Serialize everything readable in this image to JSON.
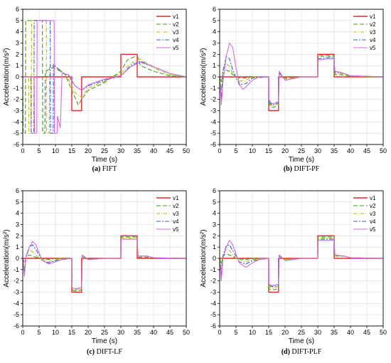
{
  "colors": {
    "v1": "#e8262b",
    "v2": "#3f9b1f",
    "v3": "#b8b800",
    "v4": "#2f5fd0",
    "v5": "#d46bd8",
    "grid": "#d9d9d9",
    "axis": "#000000"
  },
  "chart_data": [
    {
      "type": "line",
      "caption_tag": "(a)",
      "caption_text": "FIFT",
      "xlabel": "Time (s)",
      "ylabel": "Acceleration(m/s²)",
      "xlim": [
        0,
        50
      ],
      "ylim": [
        -6,
        6
      ],
      "xticks": [
        0,
        5,
        10,
        15,
        20,
        25,
        30,
        35,
        40,
        45,
        50
      ],
      "yticks": [
        6,
        5,
        4,
        3,
        2,
        1,
        0,
        -1,
        -2,
        -3,
        -4,
        -5,
        -6
      ],
      "grid": true,
      "legend_position": "top-right",
      "series": [
        {
          "name": "v1",
          "x": [
            0,
            15,
            15,
            18,
            18,
            30,
            30,
            35,
            35,
            50
          ],
          "y": [
            0,
            0,
            -3,
            -3,
            0,
            0,
            2,
            2,
            0,
            0
          ]
        },
        {
          "name": "v2",
          "x": [
            0,
            0.1,
            0.8,
            0.9,
            6.0,
            6.1,
            6.8,
            6.9,
            9,
            11,
            13,
            15,
            17,
            18,
            20,
            25,
            30,
            32,
            35,
            36,
            40,
            45,
            50
          ],
          "y": [
            0,
            -5,
            -5,
            5,
            5,
            -5,
            -5,
            0.5,
            0.8,
            0.6,
            0.2,
            -1.2,
            -2.5,
            -2.0,
            -1.2,
            -0.5,
            0.5,
            1.5,
            1.9,
            1.0,
            0.5,
            0.1,
            0
          ]
        },
        {
          "name": "v3",
          "x": [
            0,
            1.8,
            1.9,
            2.6,
            2.7,
            7.2,
            7.3,
            8.1,
            8.2,
            10,
            12,
            14,
            16,
            18,
            20,
            25,
            30,
            33,
            36,
            40,
            45,
            50
          ],
          "y": [
            0,
            0,
            -5,
            -5,
            5,
            5,
            -5,
            -5,
            1.0,
            0.9,
            0.5,
            -0.2,
            -1.4,
            -1.8,
            -1.0,
            -0.4,
            0.3,
            1.2,
            1.6,
            0.8,
            0.2,
            0
          ]
        },
        {
          "name": "v4",
          "x": [
            0,
            2.5,
            2.6,
            3.4,
            3.5,
            8.4,
            8.5,
            9.3,
            9.4,
            10.5,
            12,
            14,
            16,
            18,
            20,
            25,
            30,
            33,
            36,
            40,
            45,
            50
          ],
          "y": [
            0,
            0,
            -5,
            -5,
            5,
            5,
            -5,
            -5,
            1.1,
            0.8,
            0.4,
            0.1,
            -0.8,
            -1.2,
            -0.8,
            -0.3,
            0.1,
            1.0,
            1.4,
            0.9,
            0.3,
            0
          ]
        },
        {
          "name": "v5",
          "x": [
            0,
            3.5,
            3.6,
            4.3,
            4.4,
            9.6,
            9.7,
            10.5,
            10.6,
            11.5,
            12,
            14,
            16,
            18,
            20,
            25,
            30,
            33,
            36,
            40,
            45,
            50
          ],
          "y": [
            0,
            0,
            -5,
            -5,
            5,
            5,
            -5,
            -5,
            -3.5,
            -4.5,
            0.3,
            0.2,
            -0.8,
            -1.2,
            -0.7,
            -0.2,
            0.1,
            0.9,
            1.3,
            0.9,
            0.3,
            0
          ]
        }
      ]
    },
    {
      "type": "line",
      "caption_tag": "(b)",
      "caption_text": "DIFT-PF",
      "xlabel": "Time (s)",
      "ylabel": "Acceleration(m/s²)",
      "xlim": [
        0,
        50
      ],
      "ylim": [
        -6,
        6
      ],
      "xticks": [
        0,
        5,
        10,
        15,
        20,
        25,
        30,
        35,
        40,
        45,
        50
      ],
      "yticks": [
        6,
        5,
        4,
        3,
        2,
        1,
        0,
        -1,
        -2,
        -3,
        -4,
        -5,
        -6
      ],
      "grid": true,
      "legend_position": "top-right",
      "series": [
        {
          "name": "v1",
          "x": [
            0,
            15,
            15,
            18,
            18,
            30,
            30,
            35,
            35,
            50
          ],
          "y": [
            0,
            0,
            -3,
            -3,
            0,
            0,
            2,
            2,
            0,
            0
          ]
        },
        {
          "name": "v2",
          "x": [
            0,
            0.5,
            1,
            2,
            3,
            4,
            6,
            8,
            10,
            15,
            15.1,
            16,
            18,
            18.2,
            20,
            25,
            30,
            30.1,
            33,
            35,
            35.2,
            37,
            40,
            50
          ],
          "y": [
            0,
            -0.5,
            0.3,
            0.6,
            0.5,
            0.2,
            -0.1,
            -0.1,
            0,
            0,
            -2.4,
            -2.7,
            -2.6,
            0.3,
            -0.1,
            0,
            0,
            1.9,
            1.9,
            1.9,
            0.2,
            0.2,
            0.05,
            0
          ]
        },
        {
          "name": "v3",
          "x": [
            0,
            0.5,
            1,
            2,
            3,
            4,
            6,
            8,
            10,
            15,
            15.1,
            16,
            18,
            18.2,
            20,
            25,
            30,
            30.1,
            33,
            35,
            35.2,
            37,
            40,
            50
          ],
          "y": [
            0,
            -1.2,
            0.6,
            1.2,
            0.9,
            0.3,
            -0.4,
            -0.3,
            0,
            0,
            -2.3,
            -2.6,
            -2.4,
            0.4,
            -0.2,
            0,
            0,
            1.8,
            1.8,
            1.8,
            0.3,
            0.3,
            0.05,
            0
          ]
        },
        {
          "name": "v4",
          "x": [
            0,
            0.5,
            1,
            2,
            3,
            4,
            6,
            8,
            10,
            15,
            15.1,
            16,
            18,
            18.2,
            20,
            25,
            30,
            30.1,
            33,
            35,
            35.2,
            37,
            40,
            50
          ],
          "y": [
            0,
            -2.0,
            0.5,
            1.8,
            1.6,
            0.6,
            -0.7,
            -0.6,
            -0.1,
            0,
            -2.2,
            -2.5,
            -2.3,
            0.4,
            -0.3,
            0,
            0,
            1.6,
            1.7,
            1.7,
            0.4,
            0.4,
            0.1,
            0
          ]
        },
        {
          "name": "v5",
          "x": [
            0,
            0.5,
            1,
            2,
            3,
            4,
            5,
            6,
            7,
            8,
            10,
            12,
            15,
            15.1,
            16,
            18,
            18.2,
            20,
            25,
            30,
            30.1,
            33,
            35,
            35.2,
            37,
            40,
            50
          ],
          "y": [
            0,
            -2.5,
            -0.5,
            1.8,
            3.0,
            2.6,
            0.8,
            -0.6,
            -1.1,
            -0.9,
            -0.3,
            0,
            0,
            -2.0,
            -2.4,
            -2.2,
            0.5,
            -0.3,
            0,
            0,
            1.5,
            1.6,
            1.6,
            0.5,
            0.4,
            0.1,
            0
          ]
        }
      ]
    },
    {
      "type": "line",
      "caption_tag": "(c)",
      "caption_text": "DIFT-LF",
      "xlabel": "Time (s)",
      "ylabel": "Acceleration(m/s²)",
      "xlim": [
        0,
        50
      ],
      "ylim": [
        -6,
        6
      ],
      "xticks": [
        0,
        5,
        10,
        15,
        20,
        25,
        30,
        35,
        40,
        45,
        50
      ],
      "yticks": [
        6,
        5,
        4,
        3,
        2,
        1,
        0,
        -1,
        -2,
        -3,
        -4,
        -5,
        -6
      ],
      "grid": true,
      "legend_position": "top-right",
      "series": [
        {
          "name": "v1",
          "x": [
            0,
            15,
            15,
            18,
            18,
            30,
            30,
            35,
            35,
            50
          ],
          "y": [
            0,
            0,
            -3,
            -3,
            0,
            0,
            2,
            2,
            0,
            0
          ]
        },
        {
          "name": "v2",
          "x": [
            0,
            0.5,
            1,
            2,
            3,
            5,
            8,
            10,
            15,
            15.1,
            16,
            18,
            18.2,
            20,
            25,
            30,
            30.1,
            33,
            35,
            35.2,
            38,
            40,
            50
          ],
          "y": [
            0,
            -0.4,
            0.1,
            0.3,
            0.2,
            0,
            -0.1,
            0,
            0,
            -2.8,
            -2.9,
            -2.8,
            0.2,
            -0.1,
            0,
            0,
            1.9,
            1.9,
            1.9,
            0.1,
            0.1,
            0.05,
            0
          ]
        },
        {
          "name": "v3",
          "x": [
            0,
            0.5,
            1,
            2,
            3,
            5,
            8,
            10,
            15,
            15.1,
            16,
            18,
            18.2,
            20,
            25,
            30,
            30.1,
            33,
            35,
            35.2,
            38,
            40,
            50
          ],
          "y": [
            0,
            -0.8,
            0.2,
            0.7,
            0.6,
            0,
            -0.3,
            -0.1,
            0,
            -2.7,
            -2.8,
            -2.7,
            0.2,
            -0.1,
            0,
            0,
            1.8,
            1.8,
            1.8,
            0.2,
            0.2,
            0.05,
            0
          ]
        },
        {
          "name": "v4",
          "x": [
            0,
            0.5,
            1,
            2,
            3,
            4,
            6,
            8,
            10,
            15,
            15.1,
            16,
            18,
            18.2,
            20,
            25,
            30,
            30.1,
            33,
            35,
            35.2,
            38,
            40,
            50
          ],
          "y": [
            0,
            -1.3,
            0.2,
            1.0,
            1.2,
            0.8,
            -0.2,
            -0.4,
            -0.2,
            0,
            -2.6,
            -2.7,
            -2.6,
            0.3,
            -0.1,
            0,
            0,
            1.7,
            1.7,
            1.7,
            0.2,
            0.2,
            0.05,
            0
          ]
        },
        {
          "name": "v5",
          "x": [
            0,
            0.5,
            1,
            2,
            3,
            4,
            5,
            6,
            8,
            10,
            12,
            15,
            15.1,
            16,
            18,
            18.2,
            20,
            25,
            30,
            30.1,
            33,
            35,
            35.2,
            38,
            40,
            50
          ],
          "y": [
            0,
            -1.6,
            0.1,
            1.0,
            1.5,
            1.2,
            0.5,
            -0.2,
            -0.5,
            -0.3,
            -0.1,
            0,
            -2.6,
            -2.7,
            -2.6,
            0.3,
            -0.1,
            0,
            0,
            1.7,
            1.7,
            1.7,
            0.2,
            0.2,
            0.05,
            0
          ]
        }
      ]
    },
    {
      "type": "line",
      "caption_tag": "(d)",
      "caption_text": "DIFT-PLF",
      "xlabel": "Time (s)",
      "ylabel": "Acceleration(m/s²)",
      "xlim": [
        0,
        50
      ],
      "ylim": [
        -6,
        6
      ],
      "xticks": [
        0,
        5,
        10,
        15,
        20,
        25,
        30,
        35,
        40,
        45,
        50
      ],
      "yticks": [
        6,
        5,
        4,
        3,
        2,
        1,
        0,
        -1,
        -2,
        -3,
        -4,
        -5,
        -6
      ],
      "grid": true,
      "legend_position": "top-right",
      "series": [
        {
          "name": "v1",
          "x": [
            0,
            15,
            15,
            18,
            18,
            30,
            30,
            35,
            35,
            50
          ],
          "y": [
            0,
            0,
            -3,
            -3,
            0,
            0,
            2,
            2,
            0,
            0
          ]
        },
        {
          "name": "v2",
          "x": [
            0,
            0.5,
            1,
            2,
            3,
            5,
            8,
            10,
            15,
            15.1,
            16,
            18,
            18.2,
            20,
            25,
            30,
            30.1,
            33,
            35,
            35.2,
            38,
            40,
            50
          ],
          "y": [
            0,
            -0.5,
            0.2,
            0.4,
            0.3,
            0,
            -0.1,
            0,
            0,
            -2.7,
            -2.8,
            -2.7,
            0.2,
            -0.1,
            0,
            0,
            1.9,
            1.9,
            1.9,
            0.2,
            0.2,
            0.05,
            0
          ]
        },
        {
          "name": "v3",
          "x": [
            0,
            0.5,
            1,
            2,
            3,
            5,
            8,
            10,
            15,
            15.1,
            16,
            18,
            18.2,
            20,
            25,
            30,
            30.1,
            33,
            35,
            35.2,
            38,
            40,
            50
          ],
          "y": [
            0,
            -1.0,
            0.3,
            0.8,
            0.7,
            0,
            -0.3,
            -0.1,
            0,
            -2.5,
            -2.6,
            -2.5,
            0.3,
            -0.1,
            0,
            0,
            1.8,
            1.8,
            1.8,
            0.2,
            0.2,
            0.05,
            0
          ]
        },
        {
          "name": "v4",
          "x": [
            0,
            0.5,
            1,
            2,
            3,
            4,
            6,
            8,
            10,
            15,
            15.1,
            16,
            18,
            18.2,
            20,
            25,
            30,
            30.1,
            33,
            35,
            35.2,
            38,
            40,
            50
          ],
          "y": [
            0,
            -1.5,
            0.2,
            1.1,
            1.2,
            0.7,
            -0.3,
            -0.5,
            -0.2,
            0,
            -2.4,
            -2.5,
            -2.4,
            0.3,
            -0.2,
            0,
            0,
            1.7,
            1.7,
            1.7,
            0.3,
            0.2,
            0.05,
            0
          ]
        },
        {
          "name": "v5",
          "x": [
            0,
            0.5,
            1,
            2,
            3,
            4,
            5,
            6,
            8,
            10,
            12,
            15,
            15.1,
            16,
            18,
            18.2,
            20,
            25,
            30,
            30.1,
            33,
            35,
            35.2,
            38,
            40,
            50
          ],
          "y": [
            0,
            -2.0,
            0,
            1.0,
            1.6,
            1.2,
            0.4,
            -0.4,
            -0.8,
            -0.4,
            -0.1,
            0,
            -2.3,
            -2.4,
            -2.3,
            0.3,
            -0.2,
            0,
            0,
            1.6,
            1.6,
            1.6,
            0.3,
            0.2,
            0.05,
            0
          ]
        }
      ]
    }
  ]
}
